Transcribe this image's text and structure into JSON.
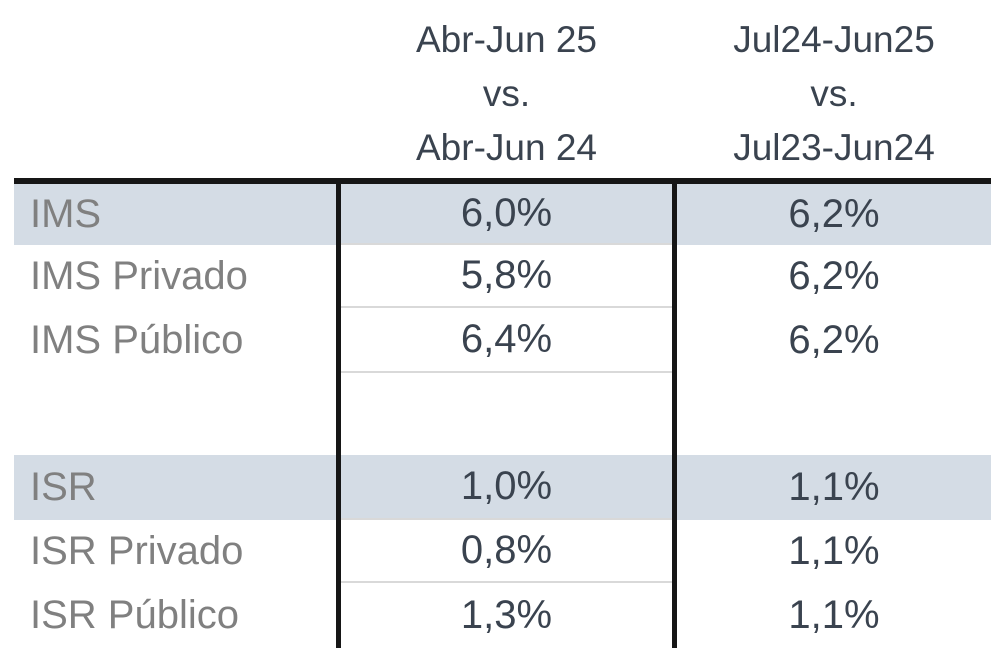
{
  "table": {
    "col_headers": [
      {
        "line1": "Abr-Jun 25",
        "line2": "vs.",
        "line3": "Abr-Jun 24"
      },
      {
        "line1": "Jul24-Jun25",
        "line2": "vs.",
        "line3": "Jul23-Jun24"
      }
    ],
    "rows": [
      {
        "label": "IMS",
        "v1": "6,0%",
        "v2": "6,2%",
        "highlight": true
      },
      {
        "label": "IMS Privado",
        "v1": "5,8%",
        "v2": "6,2%",
        "highlight": false
      },
      {
        "label": "IMS Público",
        "v1": "6,4%",
        "v2": "6,2%",
        "highlight": false
      },
      {
        "label": "",
        "v1": "",
        "v2": "",
        "highlight": false
      },
      {
        "label": "ISR",
        "v1": "1,0%",
        "v2": "1,1%",
        "highlight": true
      },
      {
        "label": "ISR Privado",
        "v1": "0,8%",
        "v2": "1,1%",
        "highlight": false
      },
      {
        "label": "ISR Público",
        "v1": "1,3%",
        "v2": "1,1%",
        "highlight": false
      }
    ],
    "colors": {
      "highlight_band": "#d4dce5",
      "label_text": "#808080",
      "value_text": "#3a434f",
      "border_line": "#161616",
      "thin_separator": "#d9d9d9"
    }
  },
  "chart_data": {
    "type": "table",
    "title": "",
    "columns": [
      "",
      "Abr-Jun 25 vs. Abr-Jun 24",
      "Jul24-Jun25 vs. Jul23-Jun24"
    ],
    "rows": [
      [
        "IMS",
        "6,0%",
        "6,2%"
      ],
      [
        "IMS Privado",
        "5,8%",
        "6,2%"
      ],
      [
        "IMS Público",
        "6,4%",
        "6,2%"
      ],
      [
        "",
        "",
        ""
      ],
      [
        "ISR",
        "1,0%",
        "1,1%"
      ],
      [
        "ISR Privado",
        "0,8%",
        "1,1%"
      ],
      [
        "ISR Público",
        "1,3%",
        "1,1%"
      ]
    ],
    "numeric_values_pct": {
      "IMS": {
        "abr_jun_25_vs_24": 6.0,
        "jul24_jun25_vs_jul23_jun24": 6.2
      },
      "IMS Privado": {
        "abr_jun_25_vs_24": 5.8,
        "jul24_jun25_vs_jul23_jun24": 6.2
      },
      "IMS Público": {
        "abr_jun_25_vs_24": 6.4,
        "jul24_jun25_vs_jul23_jun24": 6.2
      },
      "ISR": {
        "abr_jun_25_vs_24": 1.0,
        "jul24_jun25_vs_jul23_jun24": 1.1
      },
      "ISR Privado": {
        "abr_jun_25_vs_24": 0.8,
        "jul24_jun25_vs_jul23_jun24": 1.1
      },
      "ISR Público": {
        "abr_jun_25_vs_24": 1.3,
        "jul24_jun25_vs_jul23_jun24": 1.1
      }
    },
    "layout_hints": {
      "highlighted_rows": [
        "IMS",
        "ISR"
      ],
      "header_rows_per_column": 3,
      "grid": "thick top border, two vertical dividers, thin row separators in middle column only"
    }
  }
}
